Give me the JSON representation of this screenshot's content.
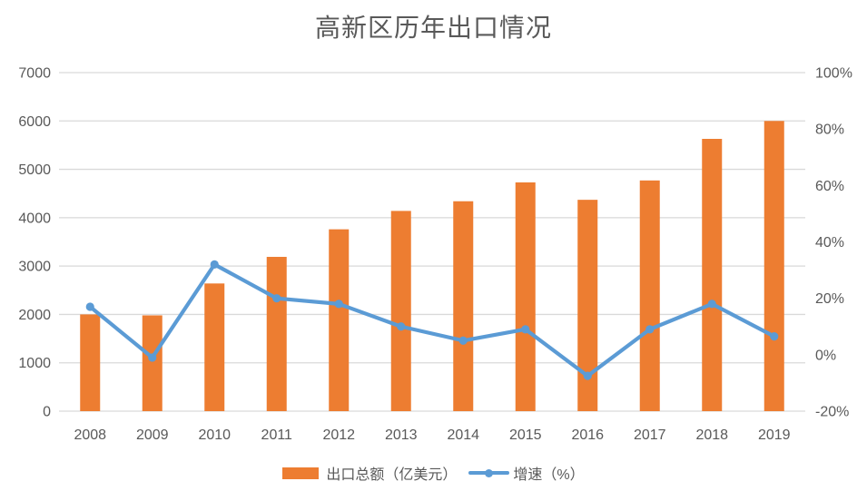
{
  "title": "高新区历年出口情况",
  "colors": {
    "bar": "#ED7D31",
    "line": "#5B9BD5",
    "marker": "#5B9BD5",
    "grid": "#D9D9D9",
    "axis_text": "#595959",
    "title_text": "#595959",
    "background": "#FFFFFF"
  },
  "legend": {
    "bar_label": "出口总额（亿美元）",
    "line_label": "增速（%）",
    "position": "bottom"
  },
  "chart_data": {
    "type": "bar",
    "subtype": "combo bar + line, dual axis",
    "title": "高新区历年出口情况",
    "categories": [
      "2008",
      "2009",
      "2010",
      "2011",
      "2012",
      "2013",
      "2014",
      "2015",
      "2016",
      "2017",
      "2018",
      "2019"
    ],
    "series": [
      {
        "name": "出口总额（亿美元）",
        "type": "bar",
        "axis": "left",
        "color": "#ED7D31",
        "values": [
          2000,
          1980,
          2640,
          3190,
          3760,
          4140,
          4340,
          4730,
          4370,
          4770,
          5630,
          6000
        ]
      },
      {
        "name": "增速（%）",
        "type": "line",
        "axis": "right",
        "color": "#5B9BD5",
        "values": [
          17,
          -1,
          32,
          20,
          18,
          10,
          5,
          9,
          -7.5,
          9,
          18,
          6.5
        ]
      }
    ],
    "left_axis": {
      "min": 0,
      "max": 7000,
      "step": 1000,
      "tick_labels": [
        "0",
        "1000",
        "2000",
        "3000",
        "4000",
        "5000",
        "6000",
        "7000"
      ]
    },
    "right_axis": {
      "min": -20,
      "max": 100,
      "step": 20,
      "tick_labels": [
        "-20%",
        "0%",
        "20%",
        "40%",
        "60%",
        "80%",
        "100%"
      ]
    },
    "grid": true,
    "legend_position": "bottom"
  }
}
